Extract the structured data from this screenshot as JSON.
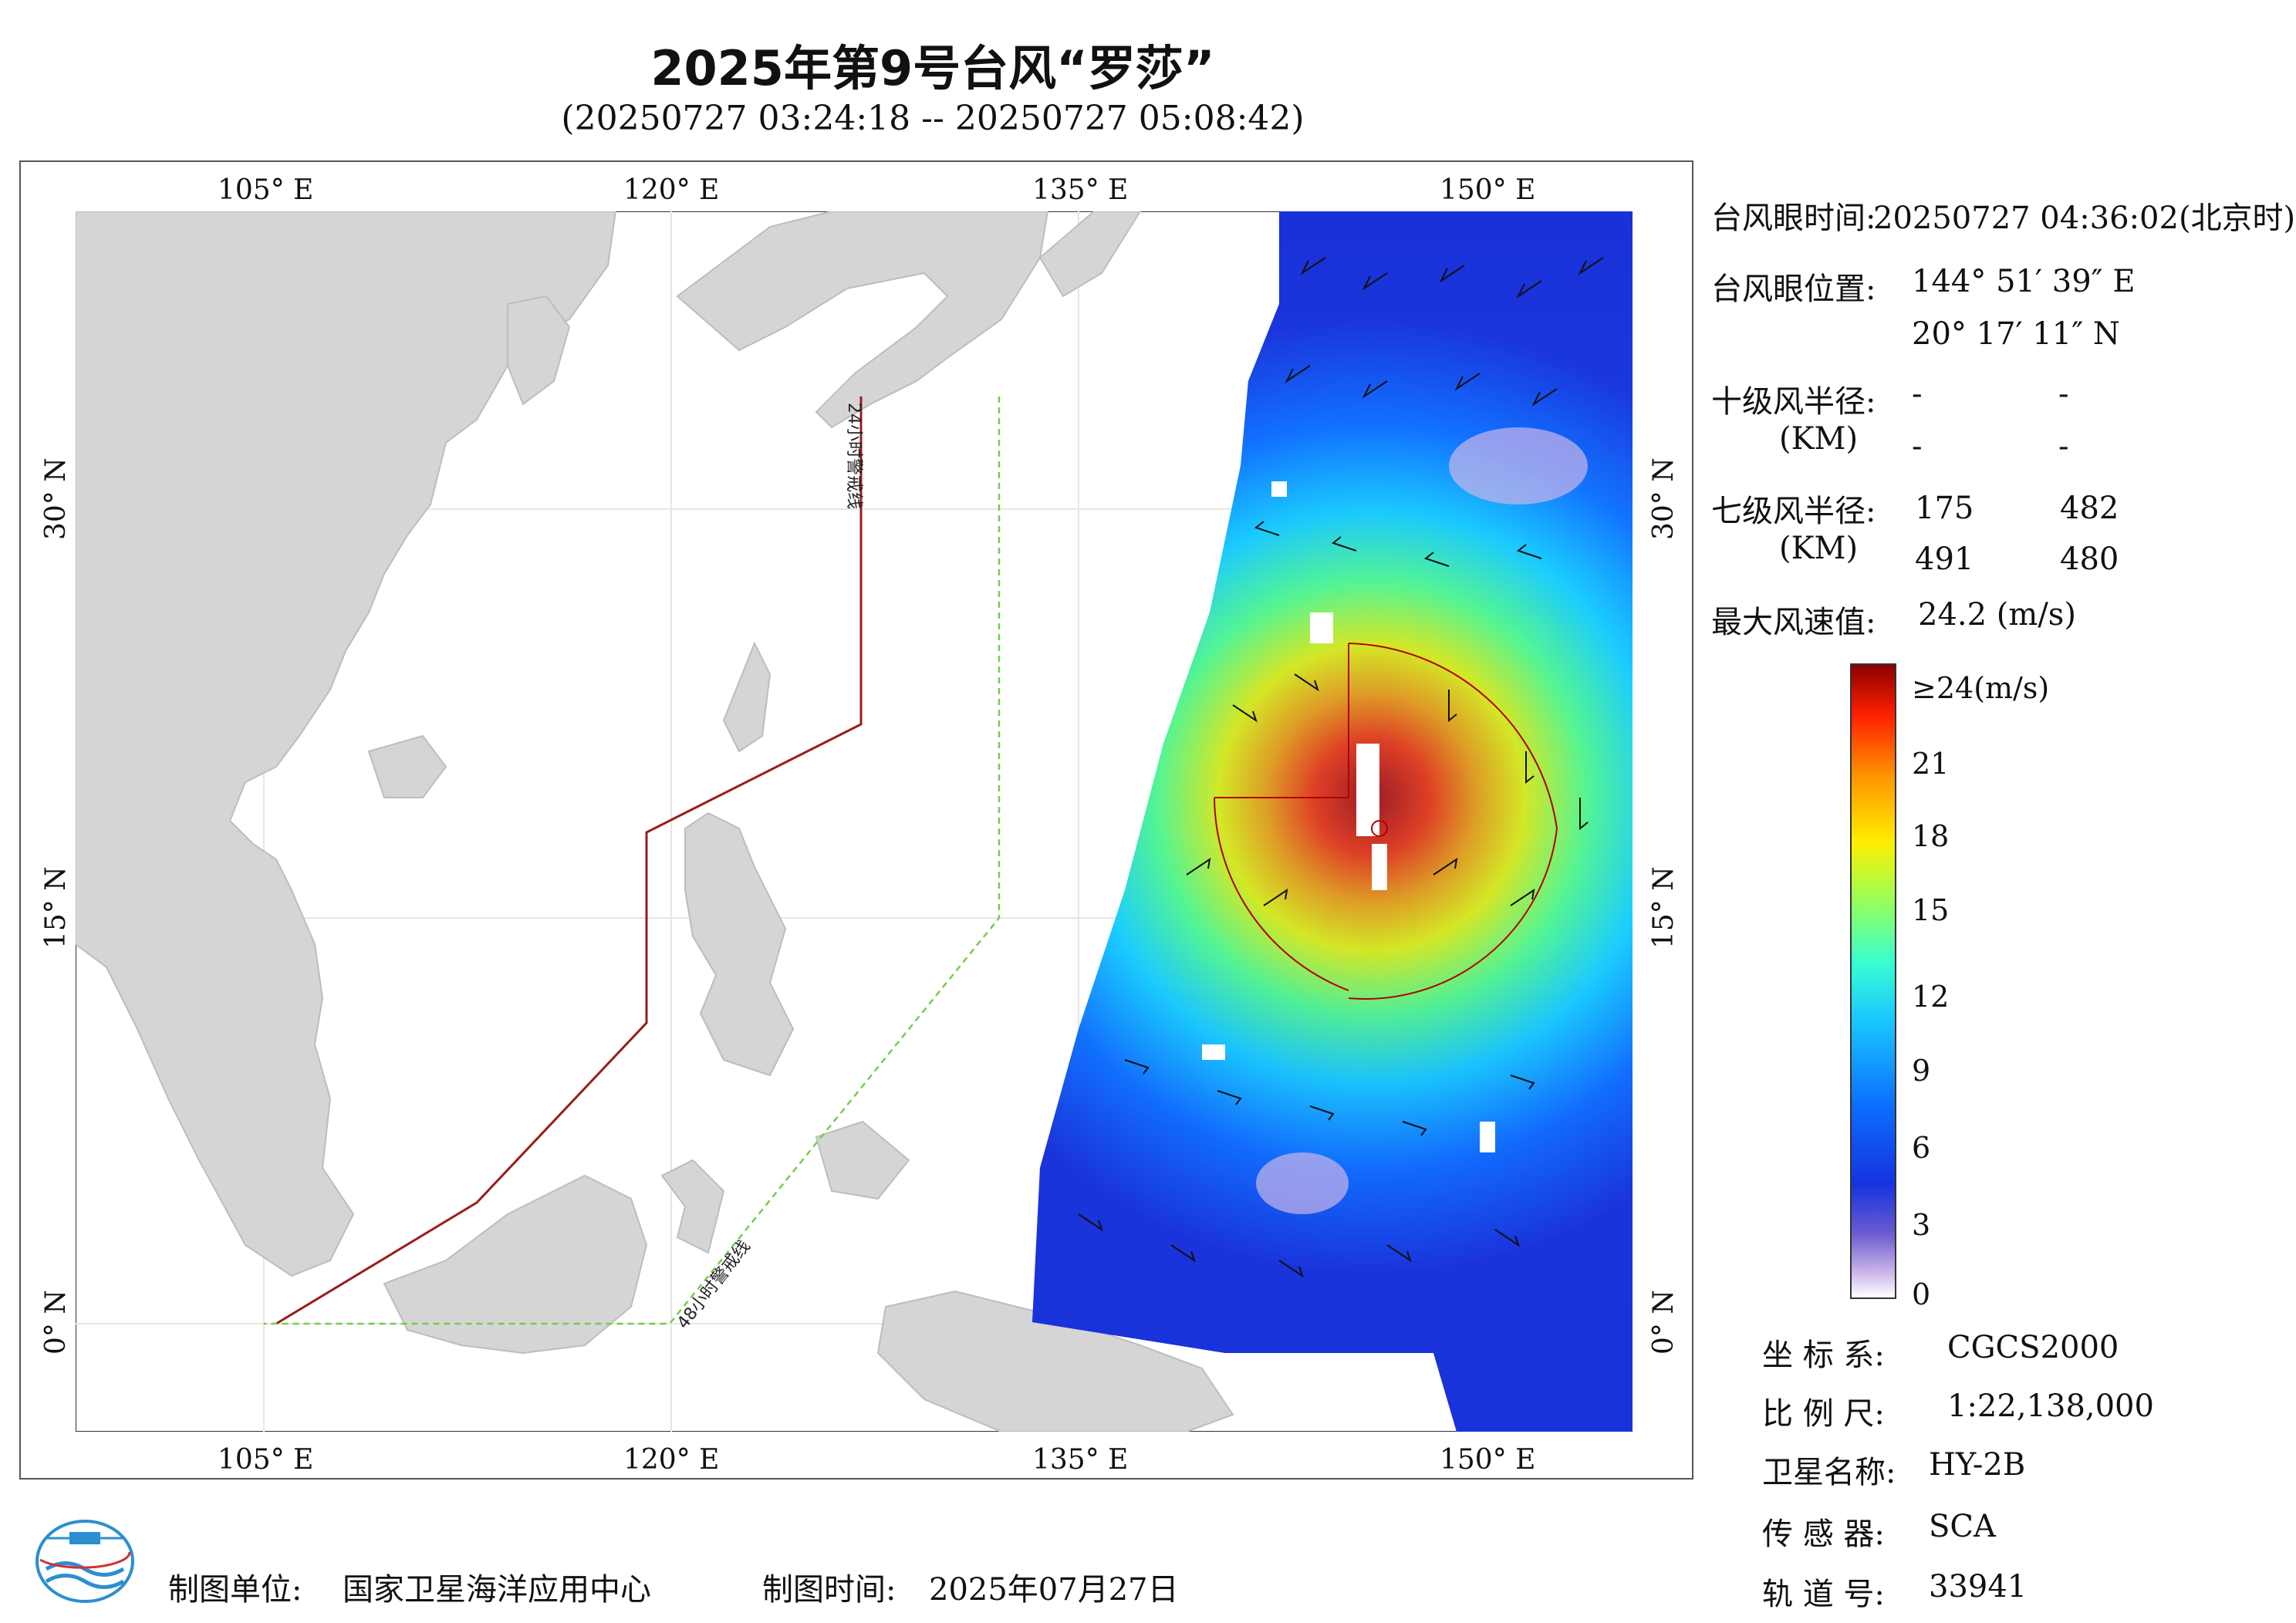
{
  "title": "2025年第9号台风“罗莎”",
  "subtitle": "(20250727 03:24:18 -- 20250727 05:08:42)",
  "map": {
    "lon_ticks": [
      "105° E",
      "120° E",
      "135° E",
      "150° E"
    ],
    "lat_ticks": [
      "30° N",
      "15° N",
      "0° N"
    ],
    "warning_24h": "24小时警戒线",
    "warning_48h": "48小时警戒线"
  },
  "info": {
    "eye_time_label": "台风眼时间:",
    "eye_time_value": "20250727 04:36:02(北京时)",
    "eye_pos_label": "台风眼位置:",
    "eye_lon": "144° 51′ 39″ E",
    "eye_lat": "20° 17′ 11″ N",
    "r10_label": "十级风半径:",
    "r10_unit": "(KM)",
    "r10_values": [
      "-",
      "-",
      "-",
      "-"
    ],
    "r7_label": "七级风半径:",
    "r7_unit": "(KM)",
    "r7_values": [
      "175",
      "482",
      "491",
      "480"
    ],
    "max_wind_label": "最大风速值:",
    "max_wind_value": "24.2 (m/s)"
  },
  "colorbar": {
    "labels": [
      "≥24(m/s)",
      "21",
      "18",
      "15",
      "12",
      "9",
      "6",
      "3",
      "0"
    ]
  },
  "meta": {
    "crs_label": "坐 标 系:",
    "crs_value": "CGCS2000",
    "scale_label": "比 例 尺:",
    "scale_value": "1:22,138,000",
    "sat_label": "卫星名称:",
    "sat_value": "HY-2B",
    "sensor_label": "传 感 器:",
    "sensor_value": "SCA",
    "orbit_label": "轨 道 号:",
    "orbit_value": "33941"
  },
  "footer": {
    "maker_label": "制图单位:",
    "maker_value": "国家卫星海洋应用中心",
    "date_label": "制图时间:",
    "date_value": "2025年07月27日"
  }
}
